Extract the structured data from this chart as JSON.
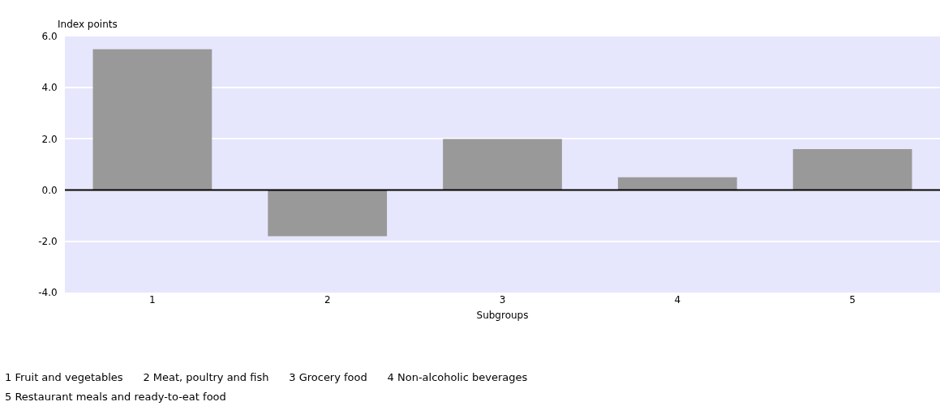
{
  "chart_data": {
    "type": "bar",
    "ylabel": "Index points",
    "xlabel": "Subgroups",
    "categories": [
      "1",
      "2",
      "3",
      "4",
      "5"
    ],
    "values": [
      5.5,
      -1.8,
      2.0,
      0.5,
      1.6
    ],
    "color": "#999999",
    "ylim": [
      -4,
      6
    ],
    "yticks": [
      {
        "value": -4,
        "label": "-4.0"
      },
      {
        "value": -2,
        "label": "-2.0"
      },
      {
        "value": 0,
        "label": "0.0"
      },
      {
        "value": 2,
        "label": "2.0"
      },
      {
        "value": 4,
        "label": "4.0"
      },
      {
        "value": 6,
        "label": "6.0"
      }
    ],
    "grid": "y",
    "ref_lines": [
      {
        "axis": "y",
        "value": 0,
        "color": "#000000"
      }
    ],
    "annotations": [
      "1 Fruit and vegetables      2 Meat, poultry and fish      3 Grocery food      4 Non-alcoholic beverages",
      "5 Restaurant meals and ready-to-eat food"
    ]
  }
}
